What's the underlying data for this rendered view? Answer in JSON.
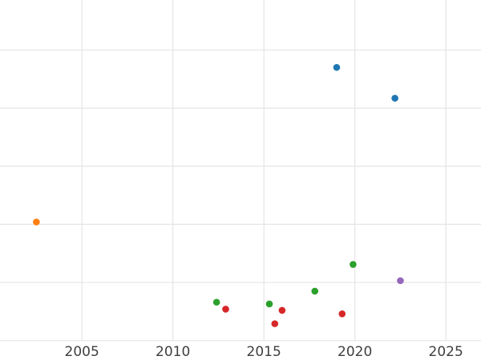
{
  "figure": {
    "background": "#ffffff",
    "gridline_color": "#e5e5e5",
    "tick_label_color": "#3f3f3f"
  },
  "chart_data": {
    "type": "scatter",
    "title": "",
    "xlabel": "",
    "ylabel": "",
    "grid": true,
    "legend_position": "none",
    "x_ticks": [
      2005,
      2010,
      2015,
      2020,
      2025
    ],
    "x_tick_labels": [
      "2005",
      "2010",
      "2015",
      "2020",
      "2025"
    ],
    "xlim": [
      2000.5,
      2026.93
    ],
    "ylim": [
      0,
      5.86
    ],
    "y_gridline_values": [
      0,
      1,
      2,
      3,
      4,
      5
    ],
    "y_tick_labels": [],
    "y_axis_note": "no y tick labels visible; values estimated in gridline units (1 unit per horizontal gridline, 0 at bottom gridline)",
    "series": [
      {
        "name": "blue",
        "color": "#1f77b4",
        "points": [
          {
            "x": 2019.0,
            "y": 4.7
          },
          {
            "x": 2022.2,
            "y": 4.17
          }
        ]
      },
      {
        "name": "orange",
        "color": "#ff7f0e",
        "points": [
          {
            "x": 2002.5,
            "y": 2.04
          }
        ]
      },
      {
        "name": "green",
        "color": "#2ca02c",
        "points": [
          {
            "x": 2012.4,
            "y": 0.66
          },
          {
            "x": 2015.3,
            "y": 0.63
          },
          {
            "x": 2017.8,
            "y": 0.85
          },
          {
            "x": 2019.9,
            "y": 1.31
          }
        ]
      },
      {
        "name": "red",
        "color": "#d62728",
        "points": [
          {
            "x": 2012.9,
            "y": 0.54
          },
          {
            "x": 2015.6,
            "y": 0.29
          },
          {
            "x": 2016.0,
            "y": 0.52
          },
          {
            "x": 2019.3,
            "y": 0.46
          }
        ]
      },
      {
        "name": "purple",
        "color": "#9467bd",
        "points": [
          {
            "x": 2022.5,
            "y": 1.03
          }
        ]
      }
    ]
  }
}
